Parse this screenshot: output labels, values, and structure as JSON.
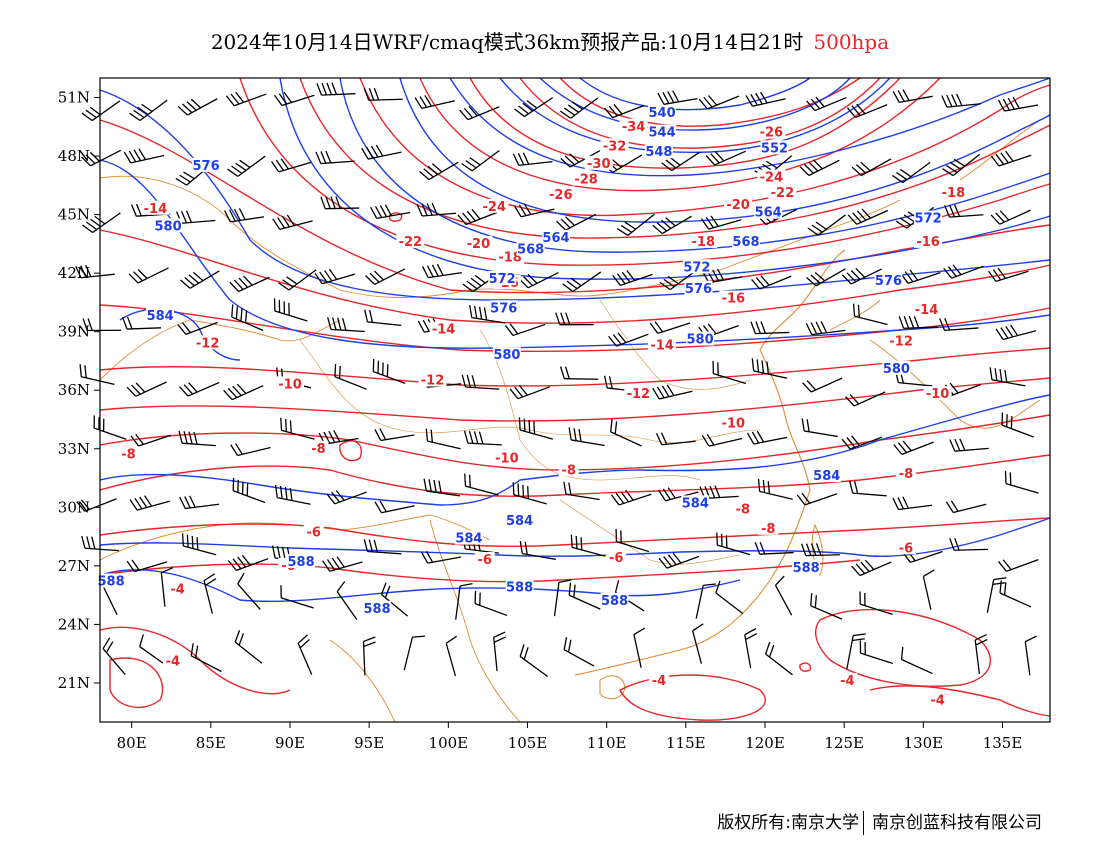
{
  "title": {
    "main": "2024年10月14日WRF/cmaq模式36km预报产品:10月14日21时",
    "level": "500hpa",
    "level_color": "#e8262a"
  },
  "axes": {
    "lon_min": 78,
    "lon_max": 138,
    "lat_min": 19,
    "lat_max": 52,
    "x_ticks": [
      "80E",
      "85E",
      "90E",
      "95E",
      "100E",
      "105E",
      "110E",
      "115E",
      "120E",
      "125E",
      "130E",
      "135E"
    ],
    "x_tick_values": [
      80,
      85,
      90,
      95,
      100,
      105,
      110,
      115,
      120,
      125,
      130,
      135
    ],
    "y_ticks": [
      "21N",
      "24N",
      "27N",
      "30N",
      "33N",
      "36N",
      "39N",
      "42N",
      "45N",
      "48N",
      "51N"
    ],
    "y_tick_values": [
      21,
      24,
      27,
      30,
      33,
      36,
      39,
      42,
      45,
      48,
      51
    ]
  },
  "colors": {
    "height_contour": "#1f3fe6",
    "temperature_contour": "#e8262a",
    "boundary": "#e08a32",
    "wind_barb": "#000000"
  },
  "geopotential_height_labels": [
    {
      "text": "540",
      "lon": 113.5,
      "lat": 50.2
    },
    {
      "text": "544",
      "lon": 113.5,
      "lat": 49.2
    },
    {
      "text": "548",
      "lon": 113.3,
      "lat": 48.2
    },
    {
      "text": "552",
      "lon": 120.6,
      "lat": 48.4
    },
    {
      "text": "576",
      "lon": 84.7,
      "lat": 47.5
    },
    {
      "text": "580",
      "lon": 82.3,
      "lat": 44.4
    },
    {
      "text": "564",
      "lon": 120.2,
      "lat": 45.1
    },
    {
      "text": "564",
      "lon": 106.8,
      "lat": 43.8
    },
    {
      "text": "568",
      "lon": 105.2,
      "lat": 43.2
    },
    {
      "text": "568",
      "lon": 118.8,
      "lat": 43.6
    },
    {
      "text": "572",
      "lon": 130.3,
      "lat": 44.8
    },
    {
      "text": "572",
      "lon": 115.7,
      "lat": 42.3
    },
    {
      "text": "572",
      "lon": 103.4,
      "lat": 41.7
    },
    {
      "text": "576",
      "lon": 103.5,
      "lat": 40.2
    },
    {
      "text": "576",
      "lon": 127.8,
      "lat": 41.6
    },
    {
      "text": "576",
      "lon": 115.8,
      "lat": 41.2
    },
    {
      "text": "580",
      "lon": 115.9,
      "lat": 38.6
    },
    {
      "text": "580",
      "lon": 103.7,
      "lat": 37.8
    },
    {
      "text": "580",
      "lon": 128.3,
      "lat": 37.1
    },
    {
      "text": "584",
      "lon": 81.8,
      "lat": 39.8
    },
    {
      "text": "584",
      "lon": 123.9,
      "lat": 31.6
    },
    {
      "text": "584",
      "lon": 115.6,
      "lat": 30.2
    },
    {
      "text": "584",
      "lon": 104.5,
      "lat": 29.3
    },
    {
      "text": "584",
      "lon": 101.3,
      "lat": 28.4
    },
    {
      "text": "588",
      "lon": 78.7,
      "lat": 26.2
    },
    {
      "text": "588",
      "lon": 90.7,
      "lat": 27.2
    },
    {
      "text": "588",
      "lon": 95.5,
      "lat": 24.8
    },
    {
      "text": "588",
      "lon": 104.5,
      "lat": 25.9
    },
    {
      "text": "588",
      "lon": 110.5,
      "lat": 25.2
    },
    {
      "text": "588",
      "lon": 122.6,
      "lat": 26.9
    }
  ],
  "temperature_labels": [
    {
      "text": "-34",
      "lon": 111.7,
      "lat": 49.5
    },
    {
      "text": "-32",
      "lon": 110.5,
      "lat": 48.5
    },
    {
      "text": "-30",
      "lon": 109.5,
      "lat": 47.6
    },
    {
      "text": "-28",
      "lon": 108.7,
      "lat": 46.8
    },
    {
      "text": "-26",
      "lon": 107.1,
      "lat": 46.0
    },
    {
      "text": "-26",
      "lon": 120.4,
      "lat": 49.2
    },
    {
      "text": "-24",
      "lon": 120.4,
      "lat": 46.9
    },
    {
      "text": "-24",
      "lon": 102.9,
      "lat": 45.4
    },
    {
      "text": "-22",
      "lon": 121.1,
      "lat": 46.1
    },
    {
      "text": "-22",
      "lon": 97.6,
      "lat": 43.6
    },
    {
      "text": "-20",
      "lon": 118.3,
      "lat": 45.5
    },
    {
      "text": "-20",
      "lon": 101.9,
      "lat": 43.5
    },
    {
      "text": "-18",
      "lon": 131.9,
      "lat": 46.1
    },
    {
      "text": "-18",
      "lon": 103.9,
      "lat": 42.8
    },
    {
      "text": "-18",
      "lon": 116.1,
      "lat": 43.6
    },
    {
      "text": "-16",
      "lon": 103.7,
      "lat": 41.5
    },
    {
      "text": "-16",
      "lon": 130.3,
      "lat": 43.6
    },
    {
      "text": "-16",
      "lon": 118.0,
      "lat": 40.7
    },
    {
      "text": "-14",
      "lon": 81.5,
      "lat": 45.3
    },
    {
      "text": "-14",
      "lon": 99.7,
      "lat": 39.1
    },
    {
      "text": "-14",
      "lon": 113.5,
      "lat": 38.3
    },
    {
      "text": "-14",
      "lon": 130.2,
      "lat": 40.1
    },
    {
      "text": "-12",
      "lon": 84.8,
      "lat": 38.4
    },
    {
      "text": "-12",
      "lon": 99.0,
      "lat": 36.5
    },
    {
      "text": "-12",
      "lon": 112.0,
      "lat": 35.8
    },
    {
      "text": "-12",
      "lon": 128.6,
      "lat": 38.5
    },
    {
      "text": "-10",
      "lon": 90.0,
      "lat": 36.3
    },
    {
      "text": "-10",
      "lon": 103.7,
      "lat": 32.5
    },
    {
      "text": "-10",
      "lon": 118.0,
      "lat": 34.3
    },
    {
      "text": "-10",
      "lon": 130.9,
      "lat": 35.8
    },
    {
      "text": "-8",
      "lon": 79.8,
      "lat": 32.7
    },
    {
      "text": "-8",
      "lon": 91.8,
      "lat": 33.0
    },
    {
      "text": "-8",
      "lon": 107.6,
      "lat": 31.9
    },
    {
      "text": "-8",
      "lon": 118.6,
      "lat": 29.9
    },
    {
      "text": "-8",
      "lon": 120.2,
      "lat": 28.9
    },
    {
      "text": "-8",
      "lon": 128.9,
      "lat": 31.7
    },
    {
      "text": "-6",
      "lon": 91.5,
      "lat": 28.7
    },
    {
      "text": "-6",
      "lon": 89.9,
      "lat": 27.0
    },
    {
      "text": "-6",
      "lon": 102.3,
      "lat": 27.3
    },
    {
      "text": "-6",
      "lon": 110.6,
      "lat": 27.4
    },
    {
      "text": "-6",
      "lon": 128.9,
      "lat": 27.9
    },
    {
      "text": "-4",
      "lon": 82.9,
      "lat": 25.8
    },
    {
      "text": "-4",
      "lon": 82.6,
      "lat": 22.1
    },
    {
      "text": "-4",
      "lon": 113.3,
      "lat": 21.1
    },
    {
      "text": "-4",
      "lon": 125.2,
      "lat": 21.1
    },
    {
      "text": "-4",
      "lon": 130.9,
      "lat": 20.1
    }
  ],
  "footer": {
    "left": "版权所有:南京大学",
    "right": "南京创蓝科技有限公司"
  }
}
